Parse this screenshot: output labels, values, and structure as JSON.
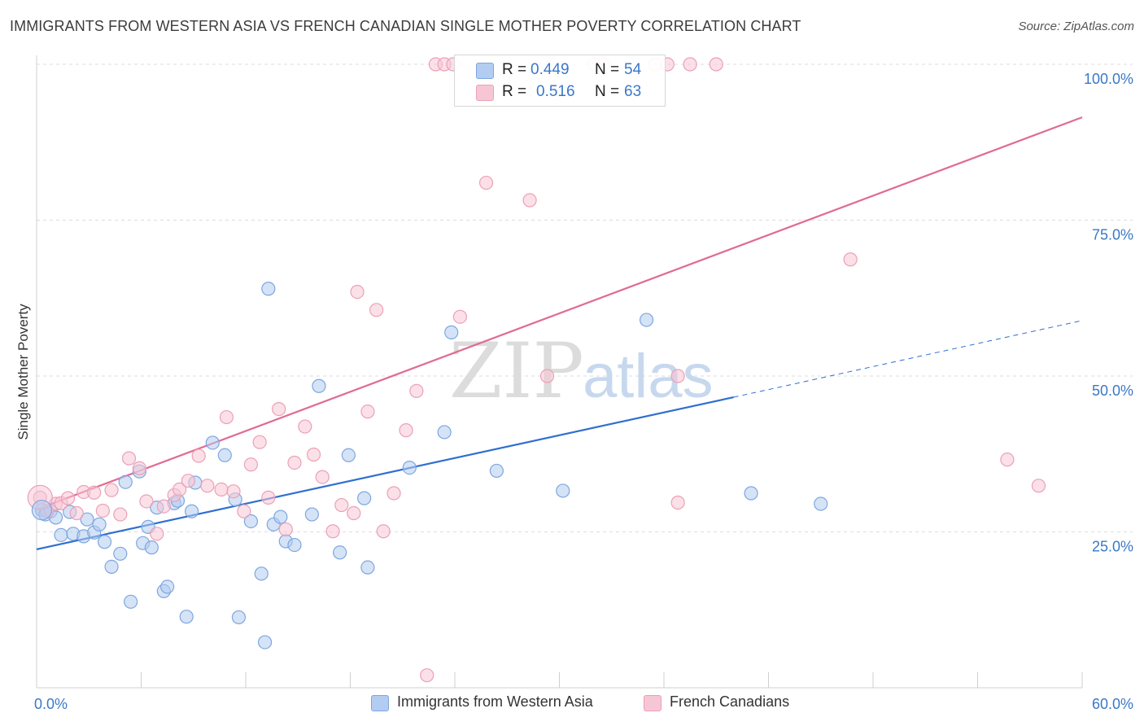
{
  "header": {
    "title": "IMMIGRANTS FROM WESTERN ASIA VS FRENCH CANADIAN SINGLE MOTHER POVERTY CORRELATION CHART",
    "source": "Source: ZipAtlas.com"
  },
  "watermark": {
    "zip": "ZIP",
    "atlas": "atlas"
  },
  "legend_top": {
    "rows": [
      {
        "r_label": "R = ",
        "r_value": "0.449",
        "n_label": "N = ",
        "n_value": "54"
      },
      {
        "r_label": "R = ",
        "r_value": "0.516",
        "n_label": "N = ",
        "n_value": "63"
      }
    ]
  },
  "legend_bottom": {
    "blue": "Immigrants from Western Asia",
    "pink": "French Canadians"
  },
  "colors": {
    "blue_fill": "#b3ccf1",
    "blue_stroke": "#7ea6df",
    "blue_line": "#2f6fd0",
    "pink_fill": "#f7c6d5",
    "pink_stroke": "#eba0b8",
    "pink_line": "#e06b93",
    "axis_label": "#3a78c6",
    "grid": "#dcdcdc"
  },
  "chart_data": {
    "type": "scatter",
    "title": "IMMIGRANTS FROM WESTERN ASIA VS FRENCH CANADIAN SINGLE MOTHER POVERTY CORRELATION CHART",
    "xlabel": "",
    "ylabel": "Single Mother Poverty",
    "xlim": [
      0,
      60
    ],
    "ylim": [
      0,
      100
    ],
    "x_tick_labels": [
      "0.0%",
      "60.0%"
    ],
    "y_tick_values": [
      25,
      50,
      75,
      100
    ],
    "y_tick_labels": [
      "25.0%",
      "50.0%",
      "75.0%",
      "100.0%"
    ],
    "grid": true,
    "legend": "bottom",
    "series": [
      {
        "name": "Immigrants from Western Asia",
        "color": "#b3ccf1",
        "points": [
          [
            0.3,
            28.5
          ],
          [
            0.5,
            27.8
          ],
          [
            0.8,
            28.3
          ],
          [
            1.1,
            27.3
          ],
          [
            1.4,
            24.5
          ],
          [
            1.9,
            28.2
          ],
          [
            2.1,
            24.7
          ],
          [
            2.7,
            24.3
          ],
          [
            2.9,
            27.0
          ],
          [
            3.3,
            24.9
          ],
          [
            3.6,
            26.2
          ],
          [
            3.9,
            23.4
          ],
          [
            4.3,
            19.4
          ],
          [
            4.8,
            21.5
          ],
          [
            5.1,
            33.0
          ],
          [
            5.4,
            13.8
          ],
          [
            5.9,
            34.7
          ],
          [
            6.1,
            23.2
          ],
          [
            6.4,
            25.8
          ],
          [
            6.6,
            22.5
          ],
          [
            6.9,
            28.9
          ],
          [
            7.3,
            15.5
          ],
          [
            7.5,
            16.2
          ],
          [
            7.9,
            29.6
          ],
          [
            8.1,
            30.0
          ],
          [
            8.6,
            11.4
          ],
          [
            8.9,
            28.3
          ],
          [
            9.1,
            32.9
          ],
          [
            10.1,
            39.3
          ],
          [
            10.8,
            37.3
          ],
          [
            11.4,
            30.2
          ],
          [
            11.6,
            11.3
          ],
          [
            12.3,
            26.7
          ],
          [
            12.9,
            18.3
          ],
          [
            13.1,
            7.3
          ],
          [
            13.3,
            64.0
          ],
          [
            13.6,
            26.2
          ],
          [
            14.0,
            27.4
          ],
          [
            14.3,
            23.5
          ],
          [
            14.8,
            22.9
          ],
          [
            15.8,
            27.8
          ],
          [
            16.2,
            48.4
          ],
          [
            17.4,
            21.7
          ],
          [
            17.9,
            37.3
          ],
          [
            18.8,
            30.4
          ],
          [
            19.0,
            19.3
          ],
          [
            21.4,
            35.3
          ],
          [
            23.4,
            41.0
          ],
          [
            23.8,
            57.0
          ],
          [
            26.4,
            34.8
          ],
          [
            30.2,
            31.6
          ],
          [
            35.0,
            59.0
          ],
          [
            41.0,
            31.2
          ],
          [
            45.0,
            29.5
          ]
        ]
      },
      {
        "name": "French Canadians",
        "color": "#f7c6d5",
        "points": [
          [
            0.2,
            30.5
          ],
          [
            0.6,
            28.3
          ],
          [
            1.1,
            29.5
          ],
          [
            1.4,
            29.6
          ],
          [
            1.8,
            30.4
          ],
          [
            2.3,
            28.0
          ],
          [
            2.7,
            31.4
          ],
          [
            3.3,
            31.3
          ],
          [
            3.8,
            28.4
          ],
          [
            4.3,
            31.7
          ],
          [
            4.8,
            27.8
          ],
          [
            5.3,
            36.8
          ],
          [
            5.9,
            35.2
          ],
          [
            6.3,
            29.9
          ],
          [
            6.9,
            24.7
          ],
          [
            7.3,
            29.1
          ],
          [
            7.9,
            30.9
          ],
          [
            8.2,
            31.8
          ],
          [
            8.7,
            33.2
          ],
          [
            9.3,
            37.2
          ],
          [
            9.8,
            32.4
          ],
          [
            10.6,
            31.8
          ],
          [
            10.9,
            43.4
          ],
          [
            11.3,
            31.5
          ],
          [
            11.9,
            28.3
          ],
          [
            12.3,
            35.8
          ],
          [
            12.8,
            39.4
          ],
          [
            13.3,
            30.5
          ],
          [
            13.9,
            44.7
          ],
          [
            14.3,
            25.4
          ],
          [
            14.8,
            36.1
          ],
          [
            15.4,
            41.9
          ],
          [
            15.9,
            37.4
          ],
          [
            16.4,
            33.8
          ],
          [
            17.0,
            25.1
          ],
          [
            17.5,
            29.3
          ],
          [
            18.2,
            28.0
          ],
          [
            18.4,
            63.5
          ],
          [
            19.0,
            44.3
          ],
          [
            19.5,
            60.6
          ],
          [
            19.9,
            25.1
          ],
          [
            20.5,
            31.2
          ],
          [
            21.2,
            41.3
          ],
          [
            21.8,
            47.6
          ],
          [
            22.4,
            2.0
          ],
          [
            22.9,
            100.0
          ],
          [
            23.4,
            100.0
          ],
          [
            23.9,
            100.0
          ],
          [
            24.3,
            59.5
          ],
          [
            25.8,
            81.0
          ],
          [
            28.3,
            78.2
          ],
          [
            29.3,
            50.0
          ],
          [
            32.0,
            100.0
          ],
          [
            32.5,
            100.0
          ],
          [
            35.5,
            100.0
          ],
          [
            36.2,
            100.0
          ],
          [
            36.8,
            50.0
          ],
          [
            36.8,
            29.7
          ],
          [
            37.5,
            100.0
          ],
          [
            39.0,
            100.0
          ],
          [
            46.7,
            68.7
          ],
          [
            55.7,
            36.6
          ],
          [
            57.5,
            32.4
          ]
        ]
      }
    ],
    "trendlines": [
      {
        "series": "Immigrants from Western Asia",
        "x": [
          0,
          40
        ],
        "y": [
          22.2,
          46.6
        ],
        "dashed_extension": {
          "x": [
            40,
            60
          ],
          "y": [
            46.6,
            58.9
          ]
        }
      },
      {
        "series": "French Canadians",
        "x": [
          0,
          60
        ],
        "y": [
          28.6,
          91.5
        ]
      }
    ]
  }
}
